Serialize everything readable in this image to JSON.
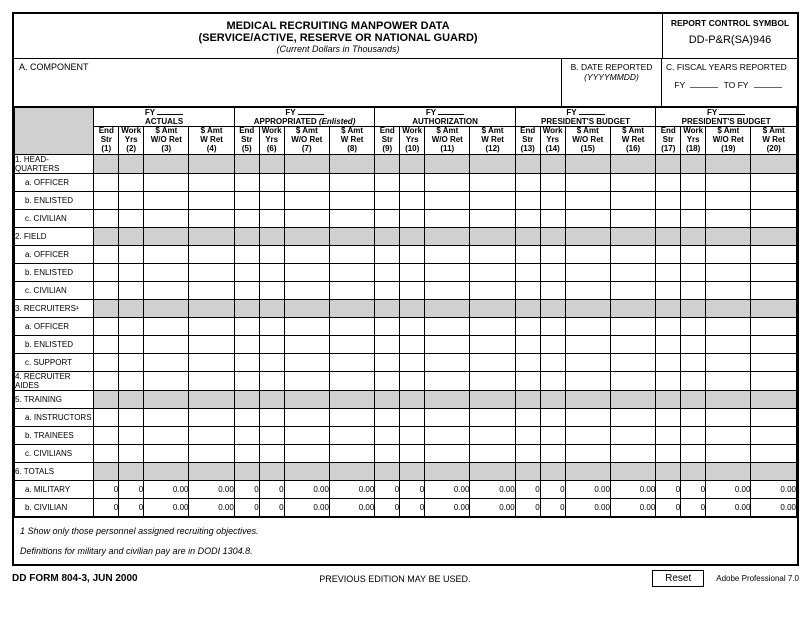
{
  "header": {
    "title1": "MEDICAL RECRUITING MANPOWER DATA",
    "title2": "(SERVICE/ACTIVE, RESERVE OR NATIONAL GUARD)",
    "subtitle": "(Current Dollars in Thousands)",
    "rcs_label": "REPORT CONTROL SYMBOL",
    "rcs_value": "DD-P&R(SA)946"
  },
  "boxes": {
    "a_label": "A.  COMPONENT",
    "b_label": "B. DATE REPORTED",
    "b_format": "(YYYYMMDD)",
    "c_label": "C.  FISCAL YEARS REPORTED",
    "c_fy": "FY",
    "c_tofy": "TO FY"
  },
  "groups": [
    {
      "fy": "FY",
      "name": "ACTUALS"
    },
    {
      "fy": "FY",
      "name": "APPROPRIATED",
      "ital": "(Enlisted)"
    },
    {
      "fy": "FY",
      "name": "AUTHORIZATION"
    },
    {
      "fy": "FY",
      "name": "PRESIDENT'S BUDGET"
    },
    {
      "fy": "FY",
      "name": "PRESIDENT'S BUDGET"
    }
  ],
  "subcols": {
    "end_str": "End\nStr",
    "work_yrs": "Work\nYrs",
    "amt_wo": "$ Amt\nW/O Ret",
    "amt_w": "$ Amt\nW Ret"
  },
  "col_nums": [
    "(1)",
    "(2)",
    "(3)",
    "(4)",
    "(5)",
    "(6)",
    "(7)",
    "(8)",
    "(9)",
    "(10)",
    "(11)",
    "(12)",
    "(13)",
    "(14)",
    "(15)",
    "(16)",
    "(17)",
    "(18)",
    "(19)",
    "(20)"
  ],
  "rows": [
    {
      "label": "1. HEAD-\n    QUARTERS",
      "type": "main-shaded"
    },
    {
      "label": "a. OFFICER",
      "type": "sub"
    },
    {
      "label": "b. ENLISTED",
      "type": "sub"
    },
    {
      "label": "c. CIVILIAN",
      "type": "sub"
    },
    {
      "label": "2. FIELD",
      "type": "main-shaded"
    },
    {
      "label": "a. OFFICER",
      "type": "sub"
    },
    {
      "label": "b. ENLISTED",
      "type": "sub"
    },
    {
      "label": "c. CIVILIAN",
      "type": "sub"
    },
    {
      "label": "3. RECRUITERS¹",
      "type": "main-shaded"
    },
    {
      "label": "a. OFFICER",
      "type": "sub"
    },
    {
      "label": "b. ENLISTED",
      "type": "sub"
    },
    {
      "label": "c. SUPPORT",
      "type": "sub"
    },
    {
      "label": "4. RECRUITER\n    AIDES",
      "type": "main"
    },
    {
      "label": "5. TRAINING",
      "type": "main-shaded"
    },
    {
      "label": "a. INSTRUCTORS",
      "type": "sub"
    },
    {
      "label": "b. TRAINEES",
      "type": "sub"
    },
    {
      "label": "c. CIVILIANS",
      "type": "sub"
    },
    {
      "label": "6. TOTALS",
      "type": "main-shaded"
    },
    {
      "label": "a. MILITARY",
      "type": "sub-total"
    },
    {
      "label": "b. CIVILIAN",
      "type": "sub-total"
    }
  ],
  "totals": {
    "int": "0",
    "dec": "0.00"
  },
  "footnotes": {
    "f1": "1  Show only those personnel assigned recruiting objectives.",
    "f2": "Definitions for military and civilian pay are in DODI 1304.8."
  },
  "footer": {
    "form_id": "DD FORM 804-3, JUN 2000",
    "prev": "PREVIOUS EDITION MAY BE USED.",
    "reset": "Reset",
    "adobe": "Adobe Professional 7.0"
  }
}
